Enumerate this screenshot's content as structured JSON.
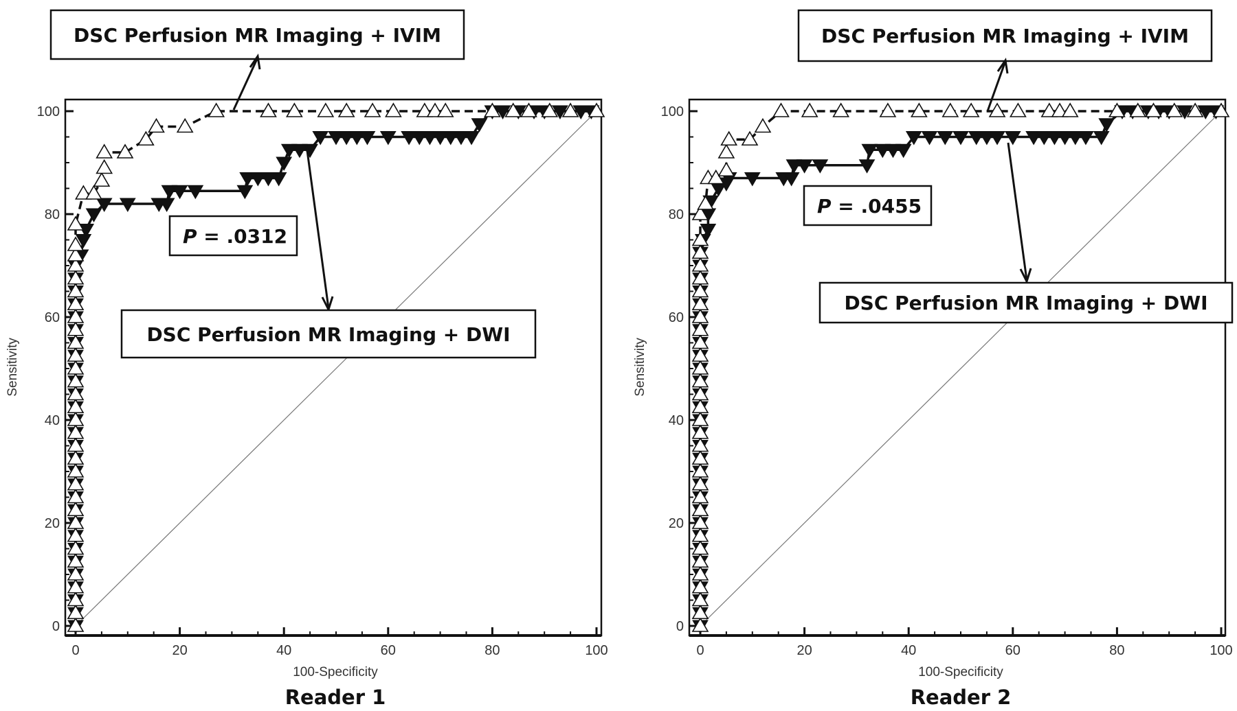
{
  "chart_data": [
    {
      "type": "line",
      "title": "Reader 1",
      "xlabel": "100-Specificity",
      "ylabel": "Sensitivity",
      "xlim": [
        0,
        100
      ],
      "ylim": [
        0,
        100
      ],
      "xticks": [
        "0",
        "20",
        "40",
        "60",
        "80",
        "100"
      ],
      "yticks": [
        "0",
        "20",
        "40",
        "60",
        "80",
        "100"
      ],
      "grid": false,
      "reference_line": "diagonal",
      "p_value_label": ".0312",
      "p_symbol": "P",
      "annotations": [
        "DSC Perfusion MR Imaging + IVIM",
        "DSC Perfusion MR Imaging + DWI"
      ],
      "series": [
        {
          "name": "DSC Perfusion MR Imaging + IVIM",
          "marker": "open-triangle-up",
          "line": "dashed",
          "x": [
            0,
            0,
            0,
            0,
            0,
            0,
            0,
            0,
            0,
            0,
            0,
            0,
            0,
            0,
            0,
            0,
            0,
            0,
            0,
            0,
            0,
            0,
            0,
            0,
            0,
            0,
            0,
            0,
            0,
            0,
            0,
            0,
            1.5,
            3.5,
            5,
            5.5,
            5.5,
            9.5,
            13.5,
            15.5,
            21,
            27,
            37,
            42,
            48,
            52,
            57,
            61,
            67,
            69,
            71,
            80,
            84,
            87,
            91,
            95,
            100
          ],
          "y": [
            0,
            2.5,
            5,
            7.5,
            10,
            12.5,
            15,
            17.5,
            20,
            22.5,
            25,
            27.5,
            30,
            32.5,
            35,
            37.5,
            40,
            42.5,
            45,
            47.5,
            50,
            52.5,
            55,
            57.5,
            60,
            62.5,
            65,
            67.5,
            70,
            72,
            74,
            78,
            84,
            84,
            86.5,
            89,
            92,
            92,
            94.5,
            97,
            97,
            100,
            100,
            100,
            100,
            100,
            100,
            100,
            100,
            100,
            100,
            100,
            100,
            100,
            100,
            100,
            100
          ]
        },
        {
          "name": "DSC Perfusion MR Imaging + DWI",
          "marker": "filled-triangle-down",
          "line": "solid",
          "x": [
            0,
            0,
            0,
            0,
            0,
            0,
            0,
            0,
            0,
            0,
            0,
            0,
            0,
            0,
            0,
            0,
            0,
            0,
            0,
            0,
            0,
            0,
            0,
            0,
            0,
            0,
            0,
            0,
            0,
            1,
            1.5,
            2,
            3.5,
            5.5,
            10,
            16,
            17.5,
            18,
            20,
            23,
            32.5,
            33,
            35,
            37,
            39,
            40,
            41,
            43,
            45,
            47,
            50,
            52,
            54,
            56,
            60,
            64,
            66,
            68,
            70,
            72,
            74,
            76,
            77.5,
            80,
            82,
            85,
            88,
            90,
            93,
            97,
            99
          ],
          "y": [
            0,
            2.5,
            5,
            7.5,
            10,
            12.5,
            15,
            17.5,
            20,
            22.5,
            25,
            27.5,
            30,
            32.5,
            35,
            37.5,
            40,
            42.5,
            45,
            47.5,
            50,
            52.5,
            55,
            57.5,
            60,
            62.5,
            65,
            67.5,
            70,
            72,
            75,
            77,
            80,
            82,
            82,
            82,
            82,
            84.5,
            84.5,
            84.5,
            84.5,
            87,
            87,
            87,
            87,
            90,
            92.5,
            92.5,
            92.5,
            95,
            95,
            95,
            95,
            95,
            95,
            95,
            95,
            95,
            95,
            95,
            95,
            95,
            97.5,
            100,
            100,
            100,
            100,
            100,
            100,
            100,
            100
          ]
        }
      ]
    },
    {
      "type": "line",
      "title": "Reader 2",
      "xlabel": "100-Specificity",
      "ylabel": "Sensitivity",
      "xlim": [
        0,
        100
      ],
      "ylim": [
        0,
        100
      ],
      "xticks": [
        "0",
        "20",
        "40",
        "60",
        "80",
        "100"
      ],
      "yticks": [
        "0",
        "20",
        "40",
        "60",
        "80",
        "100"
      ],
      "grid": false,
      "reference_line": "diagonal",
      "p_value_label": ".0455",
      "p_symbol": "P",
      "annotations": [
        "DSC Perfusion MR Imaging + IVIM",
        "DSC Perfusion MR Imaging + DWI"
      ],
      "series": [
        {
          "name": "DSC Perfusion MR Imaging + IVIM",
          "marker": "open-triangle-up",
          "line": "dashed",
          "x": [
            0,
            0,
            0,
            0,
            0,
            0,
            0,
            0,
            0,
            0,
            0,
            0,
            0,
            0,
            0,
            0,
            0,
            0,
            0,
            0,
            0,
            0,
            0,
            0,
            0,
            0,
            0,
            0,
            0,
            0,
            0,
            0,
            1,
            1.5,
            3,
            5,
            5,
            5.5,
            9.5,
            12,
            15.5,
            21,
            27,
            36,
            42,
            48,
            52,
            57,
            61,
            67,
            69,
            71,
            80,
            84,
            87,
            91,
            95,
            100
          ],
          "y": [
            0,
            2.5,
            5,
            7.5,
            10,
            12.5,
            15,
            17.5,
            20,
            22.5,
            25,
            27.5,
            30,
            32.5,
            35,
            37.5,
            40,
            42.5,
            45,
            47.5,
            50,
            52.5,
            55,
            57.5,
            60,
            62.5,
            65,
            67.5,
            70,
            72.5,
            75,
            80,
            82,
            87,
            87,
            88.5,
            92,
            94.5,
            94.5,
            97,
            100,
            100,
            100,
            100,
            100,
            100,
            100,
            100,
            100,
            100,
            100,
            100,
            100,
            100,
            100,
            100,
            100,
            100
          ]
        },
        {
          "name": "DSC Perfusion MR Imaging + DWI",
          "marker": "filled-triangle-down",
          "line": "solid",
          "x": [
            0,
            0,
            0,
            0,
            0,
            0,
            0,
            0,
            0,
            0,
            0,
            0,
            0,
            0,
            0,
            0,
            0,
            0,
            0,
            0,
            0,
            0,
            0,
            0,
            0,
            0,
            0,
            0,
            0,
            0,
            0.5,
            1.5,
            1.5,
            2,
            3.5,
            5,
            5.5,
            10,
            16,
            17.5,
            18,
            20,
            23,
            32,
            32.5,
            35,
            37,
            39,
            41,
            44,
            47,
            50,
            53,
            55,
            57,
            60,
            64,
            66,
            68,
            70,
            72,
            74,
            77,
            78,
            81,
            83,
            86,
            88,
            90,
            93,
            97,
            99
          ],
          "y": [
            0,
            2.5,
            5,
            7.5,
            10,
            12.5,
            15,
            17.5,
            20,
            22.5,
            25,
            27.5,
            30,
            32.5,
            35,
            37.5,
            40,
            42.5,
            45,
            47.5,
            50,
            52.5,
            55,
            57.5,
            60,
            62.5,
            65,
            67.5,
            70,
            72.5,
            75,
            77,
            80,
            82.5,
            85,
            86,
            87,
            87,
            87,
            87,
            89.5,
            89.5,
            89.5,
            89.5,
            92.5,
            92.5,
            92.5,
            92.5,
            95,
            95,
            95,
            95,
            95,
            95,
            95,
            95,
            95,
            95,
            95,
            95,
            95,
            95,
            95,
            97.5,
            100,
            100,
            100,
            100,
            100,
            100,
            100,
            100
          ]
        }
      ]
    }
  ]
}
